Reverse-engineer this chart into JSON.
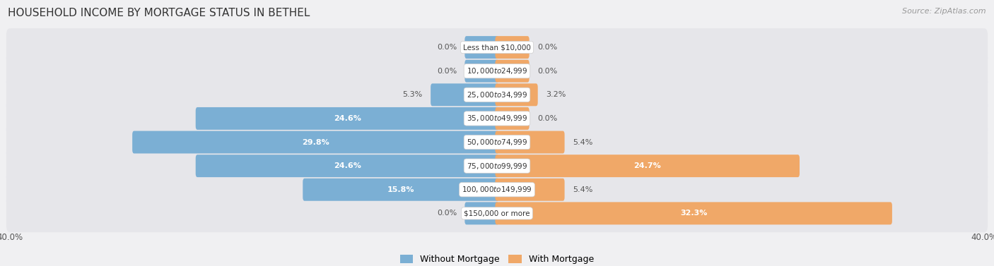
{
  "title": "HOUSEHOLD INCOME BY MORTGAGE STATUS IN BETHEL",
  "source": "Source: ZipAtlas.com",
  "categories": [
    "Less than $10,000",
    "$10,000 to $24,999",
    "$25,000 to $34,999",
    "$35,000 to $49,999",
    "$50,000 to $74,999",
    "$75,000 to $99,999",
    "$100,000 to $149,999",
    "$150,000 or more"
  ],
  "without_mortgage": [
    0.0,
    0.0,
    5.3,
    24.6,
    29.8,
    24.6,
    15.8,
    0.0
  ],
  "with_mortgage": [
    0.0,
    0.0,
    3.2,
    0.0,
    5.4,
    24.7,
    5.4,
    32.3
  ],
  "without_mortgage_color": "#7bafd4",
  "with_mortgage_color": "#f0a868",
  "x_max": 40.0,
  "fig_bg": "#f0f0f2",
  "row_bg": "#e6e6ea",
  "title_fontsize": 11,
  "source_fontsize": 8,
  "label_fontsize": 8,
  "category_fontsize": 7.5,
  "legend_fontsize": 9,
  "axis_label_fontsize": 8.5,
  "stub_size": 2.5
}
